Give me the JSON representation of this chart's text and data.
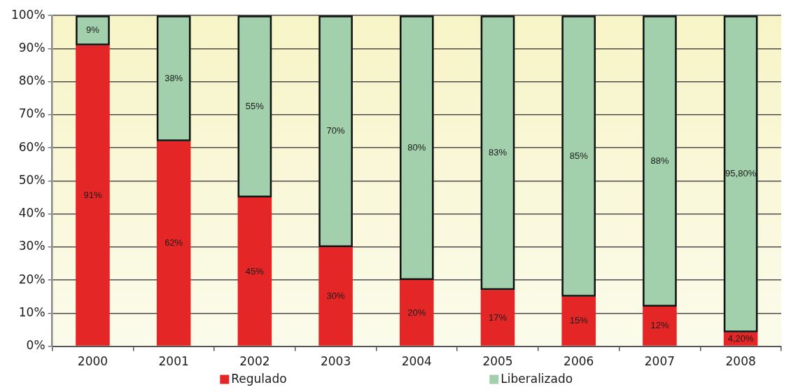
{
  "chart_data": {
    "type": "bar",
    "stacked": true,
    "categories": [
      "2000",
      "2001",
      "2002",
      "2003",
      "2004",
      "2005",
      "2006",
      "2007",
      "2008"
    ],
    "series": [
      {
        "name": "Regulado",
        "color": "#e52626",
        "values": [
          91,
          62,
          45,
          30,
          20,
          17,
          15,
          12,
          4.2
        ],
        "value_labels": [
          "91%",
          "62%",
          "45%",
          "30%",
          "20%",
          "17%",
          "15%",
          "12%",
          "4,20%"
        ]
      },
      {
        "name": "Liberalizado",
        "color": "#a2cfac",
        "values": [
          9,
          38,
          55,
          70,
          80,
          83,
          85,
          88,
          95.8
        ],
        "value_labels": [
          "9%",
          "38%",
          "55%",
          "70%",
          "80%",
          "83%",
          "85%",
          "88%",
          "95,80%"
        ]
      }
    ],
    "ylim": [
      0,
      100
    ],
    "yticks": [
      {
        "value": 0,
        "label": "0%"
      },
      {
        "value": 10,
        "label": "10%"
      },
      {
        "value": 20,
        "label": "20%"
      },
      {
        "value": 30,
        "label": "30%"
      },
      {
        "value": 40,
        "label": "40%"
      },
      {
        "value": 50,
        "label": "50%"
      },
      {
        "value": 60,
        "label": "60%"
      },
      {
        "value": 70,
        "label": "70%"
      },
      {
        "value": 80,
        "label": "80%"
      },
      {
        "value": 90,
        "label": "90%"
      },
      {
        "value": 100,
        "label": "100%"
      }
    ],
    "grid": "y",
    "legend": "bottom"
  }
}
